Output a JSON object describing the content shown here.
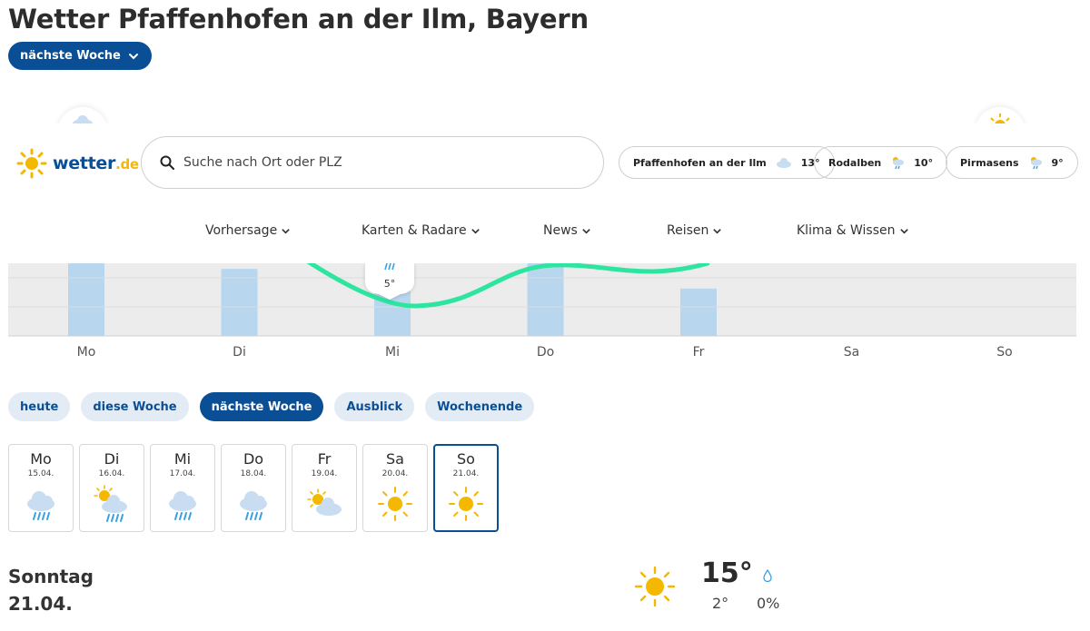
{
  "page": {
    "title": "Wetter Pfaffenhofen an der Ilm, Bayern",
    "range_label": "nächste Woche"
  },
  "header": {
    "logo_text": "wetter",
    "logo_tld": ".de",
    "search_placeholder": "Suche nach Ort oder PLZ",
    "favorites": [
      {
        "name": "Pfaffenhofen an der Ilm",
        "temp": "13°",
        "icon": "cloud-icon"
      },
      {
        "name": "Rodalben",
        "temp": "10°",
        "icon": "sun-cloud-rain-icon"
      },
      {
        "name": "Pirmasens",
        "temp": "9°",
        "icon": "sun-cloud-rain-icon"
      }
    ],
    "nav": [
      "Vorhersage",
      "Karten & Radare",
      "News",
      "Reisen",
      "Klima & Wissen"
    ]
  },
  "chart_data": {
    "type": "bar",
    "categories": [
      "Mo",
      "Di",
      "Mi",
      "Do",
      "Fr",
      "Sa",
      "So"
    ],
    "values": [
      100,
      41,
      42,
      100,
      29,
      0,
      0
    ],
    "visible_label": {
      "day": "Mi",
      "text": "5°"
    },
    "line": {
      "color": "#2ee5a0"
    },
    "bar_color": "#b8d6ee"
  },
  "tabs": [
    {
      "label": "heute",
      "active": false
    },
    {
      "label": "diese Woche",
      "active": false
    },
    {
      "label": "nächste Woche",
      "active": true
    },
    {
      "label": "Ausblick",
      "active": false
    },
    {
      "label": "Wochenende",
      "active": false
    }
  ],
  "days": [
    {
      "name": "Mo",
      "date": "15.04.",
      "icon": "cloud-rain-icon",
      "selected": false
    },
    {
      "name": "Di",
      "date": "16.04.",
      "icon": "sun-cloud-rain-icon",
      "selected": false
    },
    {
      "name": "Mi",
      "date": "17.04.",
      "icon": "cloud-rain-icon",
      "selected": false
    },
    {
      "name": "Do",
      "date": "18.04.",
      "icon": "cloud-rain-icon",
      "selected": false
    },
    {
      "name": "Fr",
      "date": "19.04.",
      "icon": "sun-cloud-icon",
      "selected": false
    },
    {
      "name": "Sa",
      "date": "20.04.",
      "icon": "sun-icon",
      "selected": false
    },
    {
      "name": "So",
      "date": "21.04.",
      "icon": "sun-icon",
      "selected": true
    }
  ],
  "detail": {
    "weekday": "Sonntag",
    "date": "21.04.",
    "temp_max": "15°",
    "temp_min": "2°",
    "precip": "0%",
    "icon": "sun-icon"
  }
}
